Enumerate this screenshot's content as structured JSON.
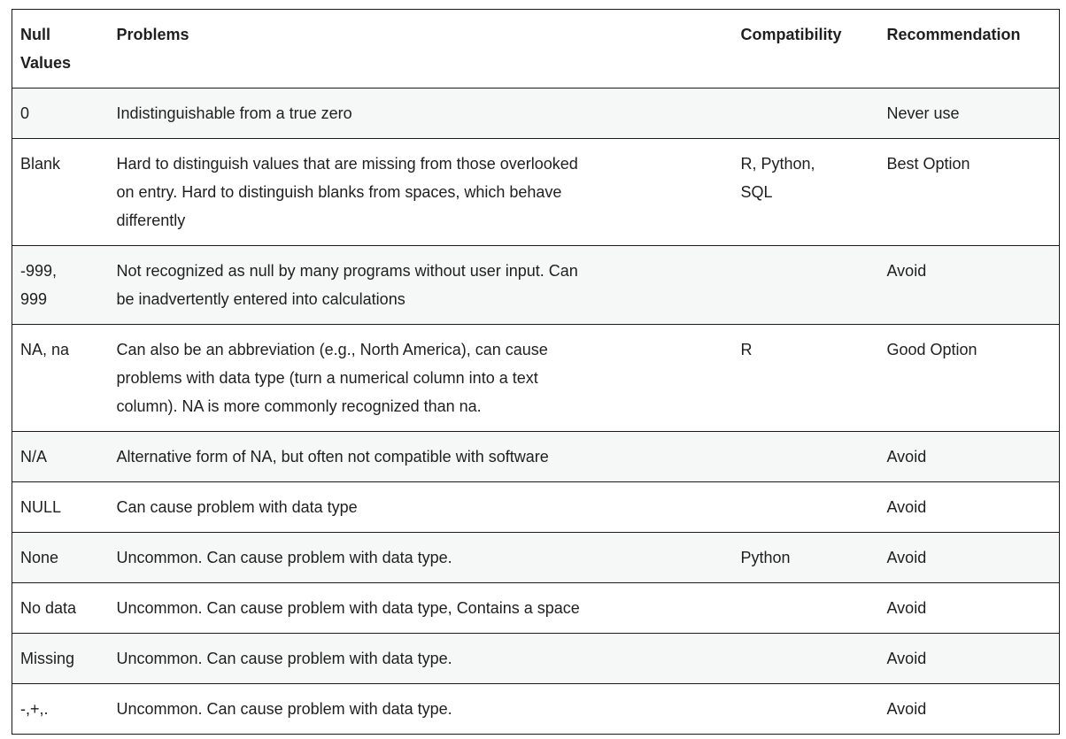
{
  "table": {
    "headers": {
      "null_value": "Null Values",
      "problems": "Problems",
      "compatibility": "Compatibility",
      "recommendation": "Recommendation"
    },
    "rows": [
      {
        "null_value": "0",
        "problems": "Indistinguishable from a true zero",
        "compatibility": "",
        "recommendation": "Never use"
      },
      {
        "null_value": "Blank",
        "problems": "Hard to distinguish values that are missing from those overlooked\non entry. Hard to distinguish blanks from spaces, which behave\ndifferently",
        "compatibility": "R, Python,\nSQL",
        "recommendation": "Best Option"
      },
      {
        "null_value": "-999,\n999",
        "problems": "Not recognized as null by many programs without user input. Can\nbe inadvertently entered into calculations",
        "compatibility": "",
        "recommendation": "Avoid"
      },
      {
        "null_value": "NA, na",
        "problems": "Can also be an abbreviation (e.g., North America), can cause\nproblems with data type (turn a numerical column into a text\ncolumn). NA is more commonly recognized than na.",
        "compatibility": "R",
        "recommendation": "Good Option"
      },
      {
        "null_value": "N/A",
        "problems": "Alternative form of NA, but often not compatible with software",
        "compatibility": "",
        "recommendation": "Avoid"
      },
      {
        "null_value": "NULL",
        "problems": "Can cause problem with data type",
        "compatibility": "",
        "recommendation": "Avoid"
      },
      {
        "null_value": "None",
        "problems": "Uncommon. Can cause problem with data type.",
        "compatibility": "Python",
        "recommendation": "Avoid"
      },
      {
        "null_value": "No data",
        "problems": "Uncommon. Can cause problem with data type, Contains a space",
        "compatibility": "",
        "recommendation": "Avoid"
      },
      {
        "null_value": "Missing",
        "problems": "Uncommon. Can cause problem with data type.",
        "compatibility": "",
        "recommendation": "Avoid"
      },
      {
        "null_value": "-,+,.",
        "problems": "Uncommon. Can cause problem with data type.",
        "compatibility": "",
        "recommendation": "Avoid"
      }
    ]
  },
  "colors": {
    "border": "#1a1a1a",
    "text": "#1f1f1f",
    "row_alt_background": "#f6f7f7",
    "background": "#ffffff"
  }
}
